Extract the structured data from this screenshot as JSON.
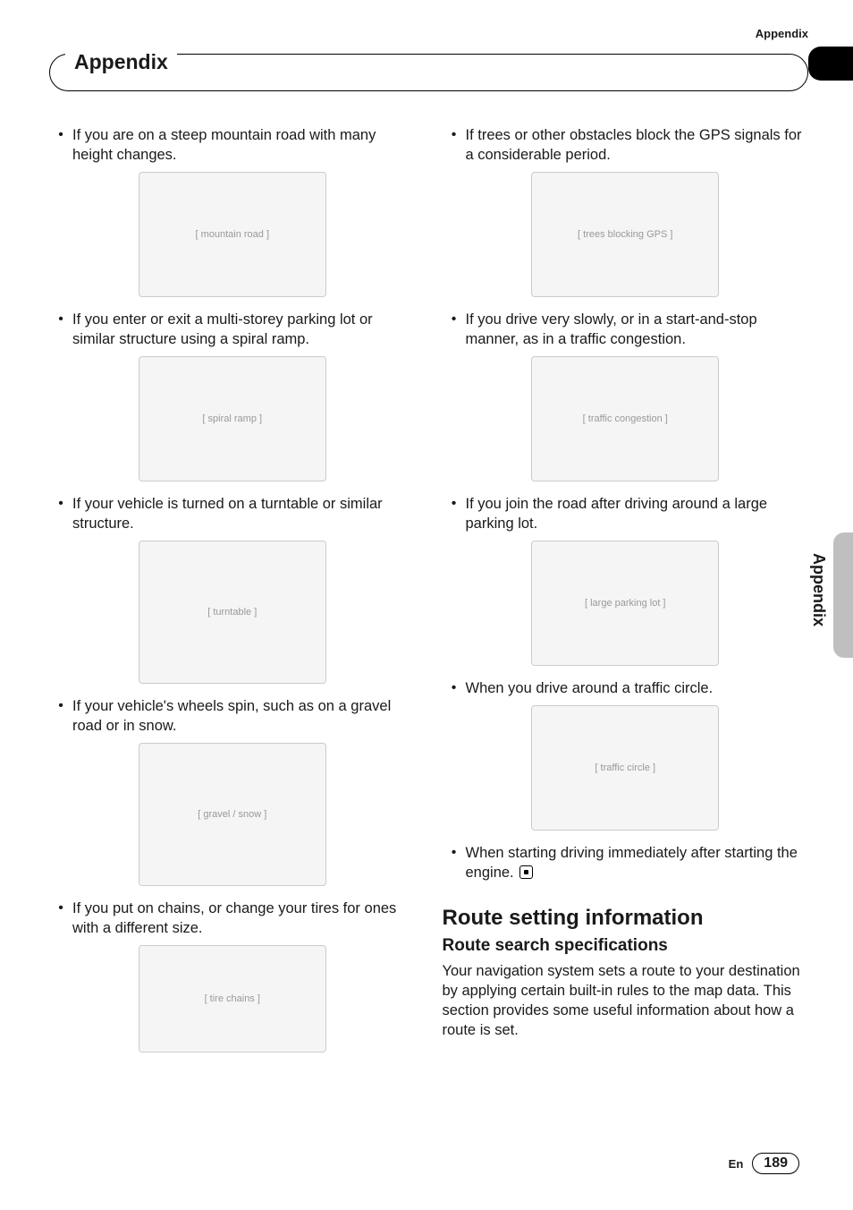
{
  "header": {
    "topRight": "Appendix",
    "badge": "Appendix",
    "sideLabel": "Appendix"
  },
  "leftColumn": {
    "items": [
      {
        "text": "If you are on a steep mountain road with many height changes.",
        "illus": "mountain-road"
      },
      {
        "text": "If you enter or exit a multi-storey parking lot or similar structure using a spiral ramp.",
        "illus": "parking-ramp"
      },
      {
        "text": "If your vehicle is turned on a turntable or similar structure.",
        "illus": "turntable"
      },
      {
        "text": "If your vehicle's wheels spin, such as on a gravel road or in snow.",
        "illus": "gravel-snow"
      },
      {
        "text": "If you put on chains, or change your tires for ones with a different size.",
        "illus": "tire-chains"
      }
    ]
  },
  "rightColumn": {
    "items": [
      {
        "text": "If trees or other obstacles block the GPS signals for a considerable period.",
        "illus": "trees-gps"
      },
      {
        "text": "If you drive very slowly, or in a start-and-stop manner, as in a traffic congestion.",
        "illus": "traffic"
      },
      {
        "text": "If you join the road after driving around a large parking lot.",
        "illus": "parking-lot"
      },
      {
        "text": "When you drive around a traffic circle.",
        "illus": "traffic-circle"
      },
      {
        "text": "When starting driving immediately after starting the engine.",
        "illus": null,
        "endIcon": true
      }
    ],
    "section": {
      "h1": "Route setting information",
      "h2": "Route search specifications",
      "para": "Your navigation system sets a route to your destination by applying certain built-in rules to the map data. This section provides some useful information about how a route is set."
    }
  },
  "footer": {
    "lang": "En",
    "page": "189"
  },
  "illusLabels": {
    "mountain-road": "[ mountain road ]",
    "parking-ramp": "[ spiral ramp ]",
    "turntable": "[ turntable ]",
    "gravel-snow": "[ gravel / snow ]",
    "tire-chains": "[ tire chains ]",
    "trees-gps": "[ trees blocking GPS ]",
    "traffic": "[ traffic congestion ]",
    "parking-lot": "[ large parking lot ]",
    "traffic-circle": "[ traffic circle ]"
  },
  "styling": {
    "bodyFontSize": 16.5,
    "lineHeight": 22,
    "h1FontSize": 24,
    "h2FontSize": 19,
    "badgeFontSize": 23,
    "textColor": "#1a1a1a",
    "illusBg": "#f5f5f5",
    "sideTabColor": "#bfbfbf"
  }
}
